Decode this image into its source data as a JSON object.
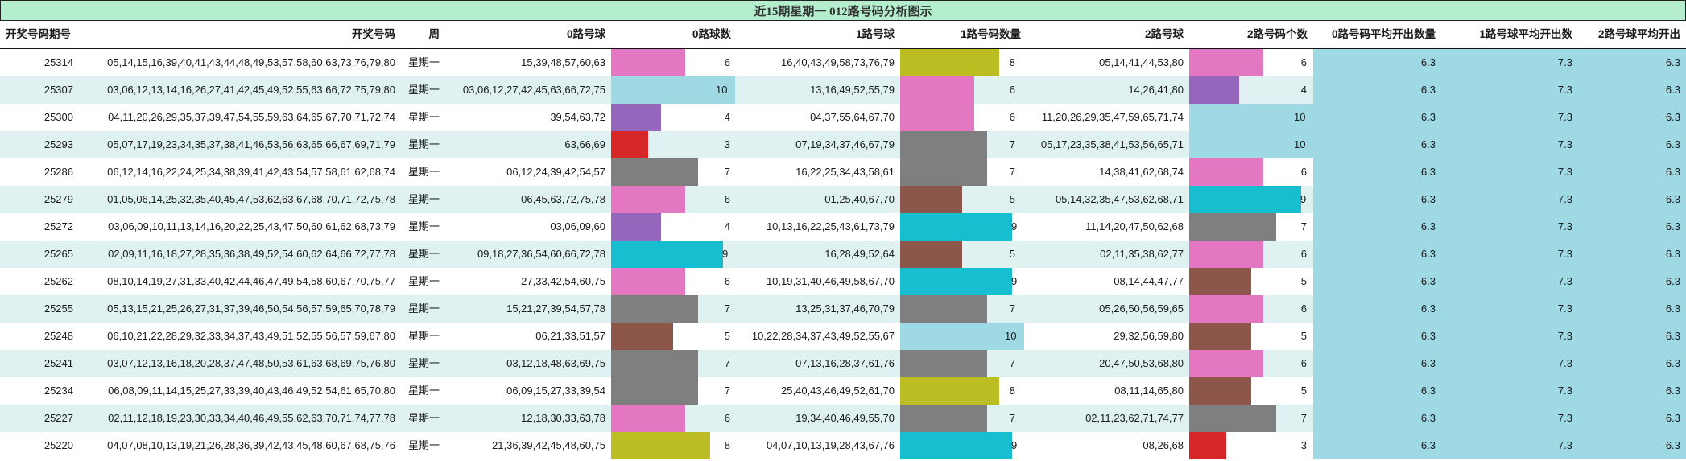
{
  "title": "近15期星期一 012路号码分析图示",
  "headers": {
    "period": "开奖号码期号",
    "numbers": "开奖号码",
    "weekday": "周",
    "road0_balls": "0路号球",
    "road0_count": "0路球数",
    "road1_balls": "1路号球",
    "road1_count": "1路号码数量",
    "road2_balls": "2路号球",
    "road2_count": "2路号码个数",
    "road0_avg": "0路号码平均开出数量",
    "road1_avg": "1路号球平均开出数",
    "road2_avg": "2路号球平均开出"
  },
  "colors": {
    "title_bg": "#b4eecd",
    "row_alt_bg": "#dff1f1",
    "avg_bg": "#9fd9e4",
    "count_colors": {
      "3": "#d62728",
      "4": "#9467bd",
      "5": "#8c564b",
      "6": "#e377c2",
      "7": "#7f7f7f",
      "8": "#bcbd22",
      "9": "#17becf",
      "10": "#9fd9e4"
    }
  },
  "rows": [
    {
      "period": "25314",
      "numbers": "05,14,15,16,39,40,41,43,44,48,49,53,57,58,60,63,73,76,79,80",
      "weekday": "星期一",
      "road0_balls": "15,39,48,57,60,63",
      "road0_count": 6,
      "road1_balls": "16,40,43,49,58,73,76,79",
      "road1_count": 8,
      "road2_balls": "05,14,41,44,53,80",
      "road2_count": 6,
      "road0_avg": "6.3",
      "road1_avg": "7.3",
      "road2_avg": "6.3"
    },
    {
      "period": "25307",
      "numbers": "03,06,12,13,14,16,26,27,41,42,45,49,52,55,63,66,72,75,79,80",
      "weekday": "星期一",
      "road0_balls": "03,06,12,27,42,45,63,66,72,75",
      "road0_count": 10,
      "road1_balls": "13,16,49,52,55,79",
      "road1_count": 6,
      "road2_balls": "14,26,41,80",
      "road2_count": 4,
      "road0_avg": "6.3",
      "road1_avg": "7.3",
      "road2_avg": "6.3"
    },
    {
      "period": "25300",
      "numbers": "04,11,20,26,29,35,37,39,47,54,55,59,63,64,65,67,70,71,72,74",
      "weekday": "星期一",
      "road0_balls": "39,54,63,72",
      "road0_count": 4,
      "road1_balls": "04,37,55,64,67,70",
      "road1_count": 6,
      "road2_balls": "11,20,26,29,35,47,59,65,71,74",
      "road2_count": 10,
      "road0_avg": "6.3",
      "road1_avg": "7.3",
      "road2_avg": "6.3"
    },
    {
      "period": "25293",
      "numbers": "05,07,17,19,23,34,35,37,38,41,46,53,56,63,65,66,67,69,71,79",
      "weekday": "星期一",
      "road0_balls": "63,66,69",
      "road0_count": 3,
      "road1_balls": "07,19,34,37,46,67,79",
      "road1_count": 7,
      "road2_balls": "05,17,23,35,38,41,53,56,65,71",
      "road2_count": 10,
      "road0_avg": "6.3",
      "road1_avg": "7.3",
      "road2_avg": "6.3"
    },
    {
      "period": "25286",
      "numbers": "06,12,14,16,22,24,25,34,38,39,41,42,43,54,57,58,61,62,68,74",
      "weekday": "星期一",
      "road0_balls": "06,12,24,39,42,54,57",
      "road0_count": 7,
      "road1_balls": "16,22,25,34,43,58,61",
      "road1_count": 7,
      "road2_balls": "14,38,41,62,68,74",
      "road2_count": 6,
      "road0_avg": "6.3",
      "road1_avg": "7.3",
      "road2_avg": "6.3"
    },
    {
      "period": "25279",
      "numbers": "01,05,06,14,25,32,35,40,45,47,53,62,63,67,68,70,71,72,75,78",
      "weekday": "星期一",
      "road0_balls": "06,45,63,72,75,78",
      "road0_count": 6,
      "road1_balls": "01,25,40,67,70",
      "road1_count": 5,
      "road2_balls": "05,14,32,35,47,53,62,68,71",
      "road2_count": 9,
      "road0_avg": "6.3",
      "road1_avg": "7.3",
      "road2_avg": "6.3"
    },
    {
      "period": "25272",
      "numbers": "03,06,09,10,11,13,14,16,20,22,25,43,47,50,60,61,62,68,73,79",
      "weekday": "星期一",
      "road0_balls": "03,06,09,60",
      "road0_count": 4,
      "road1_balls": "10,13,16,22,25,43,61,73,79",
      "road1_count": 9,
      "road2_balls": "11,14,20,47,50,62,68",
      "road2_count": 7,
      "road0_avg": "6.3",
      "road1_avg": "7.3",
      "road2_avg": "6.3"
    },
    {
      "period": "25265",
      "numbers": "02,09,11,16,18,27,28,35,36,38,49,52,54,60,62,64,66,72,77,78",
      "weekday": "星期一",
      "road0_balls": "09,18,27,36,54,60,66,72,78",
      "road0_count": 9,
      "road1_balls": "16,28,49,52,64",
      "road1_count": 5,
      "road2_balls": "02,11,35,38,62,77",
      "road2_count": 6,
      "road0_avg": "6.3",
      "road1_avg": "7.3",
      "road2_avg": "6.3"
    },
    {
      "period": "25262",
      "numbers": "08,10,14,19,27,31,33,40,42,44,46,47,49,54,58,60,67,70,75,77",
      "weekday": "星期一",
      "road0_balls": "27,33,42,54,60,75",
      "road0_count": 6,
      "road1_balls": "10,19,31,40,46,49,58,67,70",
      "road1_count": 9,
      "road2_balls": "08,14,44,47,77",
      "road2_count": 5,
      "road0_avg": "6.3",
      "road1_avg": "7.3",
      "road2_avg": "6.3"
    },
    {
      "period": "25255",
      "numbers": "05,13,15,21,25,26,27,31,37,39,46,50,54,56,57,59,65,70,78,79",
      "weekday": "星期一",
      "road0_balls": "15,21,27,39,54,57,78",
      "road0_count": 7,
      "road1_balls": "13,25,31,37,46,70,79",
      "road1_count": 7,
      "road2_balls": "05,26,50,56,59,65",
      "road2_count": 6,
      "road0_avg": "6.3",
      "road1_avg": "7.3",
      "road2_avg": "6.3"
    },
    {
      "period": "25248",
      "numbers": "06,10,21,22,28,29,32,33,34,37,43,49,51,52,55,56,57,59,67,80",
      "weekday": "星期一",
      "road0_balls": "06,21,33,51,57",
      "road0_count": 5,
      "road1_balls": "10,22,28,34,37,43,49,52,55,67",
      "road1_count": 10,
      "road2_balls": "29,32,56,59,80",
      "road2_count": 5,
      "road0_avg": "6.3",
      "road1_avg": "7.3",
      "road2_avg": "6.3"
    },
    {
      "period": "25241",
      "numbers": "03,07,12,13,16,18,20,28,37,47,48,50,53,61,63,68,69,75,76,80",
      "weekday": "星期一",
      "road0_balls": "03,12,18,48,63,69,75",
      "road0_count": 7,
      "road1_balls": "07,13,16,28,37,61,76",
      "road1_count": 7,
      "road2_balls": "20,47,50,53,68,80",
      "road2_count": 6,
      "road0_avg": "6.3",
      "road1_avg": "7.3",
      "road2_avg": "6.3"
    },
    {
      "period": "25234",
      "numbers": "06,08,09,11,14,15,25,27,33,39,40,43,46,49,52,54,61,65,70,80",
      "weekday": "星期一",
      "road0_balls": "06,09,15,27,33,39,54",
      "road0_count": 7,
      "road1_balls": "25,40,43,46,49,52,61,70",
      "road1_count": 8,
      "road2_balls": "08,11,14,65,80",
      "road2_count": 5,
      "road0_avg": "6.3",
      "road1_avg": "7.3",
      "road2_avg": "6.3"
    },
    {
      "period": "25227",
      "numbers": "02,11,12,18,19,23,30,33,34,40,46,49,55,62,63,70,71,74,77,78",
      "weekday": "星期一",
      "road0_balls": "12,18,30,33,63,78",
      "road0_count": 6,
      "road1_balls": "19,34,40,46,49,55,70",
      "road1_count": 7,
      "road2_balls": "02,11,23,62,71,74,77",
      "road2_count": 7,
      "road0_avg": "6.3",
      "road1_avg": "7.3",
      "road2_avg": "6.3"
    },
    {
      "period": "25220",
      "numbers": "04,07,08,10,13,19,21,26,28,36,39,42,43,45,48,60,67,68,75,76",
      "weekday": "星期一",
      "road0_balls": "21,36,39,42,45,48,60,75",
      "road0_count": 8,
      "road1_balls": "04,07,10,13,19,28,43,67,76",
      "road1_count": 9,
      "road2_balls": "08,26,68",
      "road2_count": 3,
      "road0_avg": "6.3",
      "road1_avg": "7.3",
      "road2_avg": "6.3"
    }
  ]
}
